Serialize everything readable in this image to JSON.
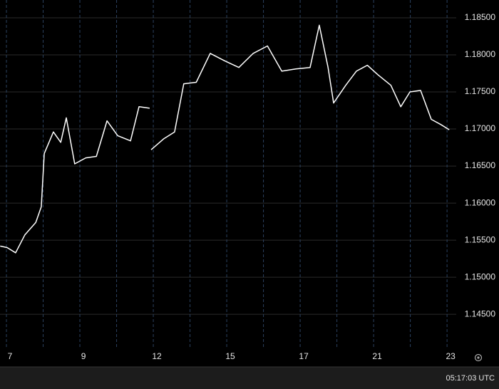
{
  "chart_data": {
    "type": "line",
    "color": "#ffffff",
    "x": [
      -0.17,
      0.02,
      0.25,
      0.5,
      0.8,
      0.95,
      1.03,
      1.28,
      1.48,
      1.63,
      1.86,
      2.16,
      2.45,
      2.74,
      3.03,
      3.38,
      3.61,
      3.9,
      3.92,
      3.94,
      4.29,
      4.58,
      4.83,
      5.17,
      5.55,
      5.94,
      6.33,
      6.72,
      7.11,
      7.5,
      7.88,
      8.27,
      8.52,
      8.76,
      8.91,
      9.24,
      9.53,
      9.83,
      10.12,
      10.47,
      10.74,
      10.99,
      11.28,
      11.57,
      11.83,
      12.06
    ],
    "series": [
      {
        "color": "#ffffff",
        "values": [
          1.1542,
          1.154,
          1.1533,
          1.1557,
          1.1574,
          1.1595,
          1.1667,
          1.1696,
          1.1682,
          1.1715,
          1.1653,
          1.1661,
          1.1663,
          1.1711,
          1.1691,
          1.1684,
          1.173,
          1.1728,
          null,
          1.1672,
          1.1687,
          1.1696,
          1.1761,
          1.1763,
          1.1802,
          1.1792,
          1.1783,
          1.1802,
          1.1812,
          1.1778,
          1.1781,
          1.1783,
          1.184,
          1.1783,
          1.1735,
          1.1759,
          1.1778,
          1.1786,
          1.1773,
          1.1759,
          1.173,
          1.175,
          1.1752,
          1.1713,
          1.1706,
          1.1699
        ]
      }
    ],
    "xlim": [
      -0.175,
      12.25
    ],
    "xticks": [
      {
        "value": 0,
        "label": "7"
      },
      {
        "value": 1,
        "label": null
      },
      {
        "value": 2,
        "label": "9"
      },
      {
        "value": 3,
        "label": null
      },
      {
        "value": 4,
        "label": "12"
      },
      {
        "value": 5,
        "label": null
      },
      {
        "value": 6,
        "label": "15"
      },
      {
        "value": 7,
        "label": null
      },
      {
        "value": 8,
        "label": "17"
      },
      {
        "value": 9,
        "label": null
      },
      {
        "value": 10,
        "label": "21"
      },
      {
        "value": 11,
        "label": null
      },
      {
        "value": 12,
        "label": "23"
      }
    ],
    "ylim": [
      1.1405,
      1.1874
    ],
    "yticks": [
      {
        "value": 1.145,
        "label": "1.14500"
      },
      {
        "value": 1.15,
        "label": "1.15000"
      },
      {
        "value": 1.155,
        "label": "1.15500"
      },
      {
        "value": 1.16,
        "label": "1.16000"
      },
      {
        "value": 1.165,
        "label": "1.16500"
      },
      {
        "value": 1.17,
        "label": "1.17000"
      },
      {
        "value": 1.175,
        "label": "1.17500"
      },
      {
        "value": 1.18,
        "label": "1.18000"
      },
      {
        "value": 1.185,
        "label": "1.18500"
      }
    ],
    "grid": true
  },
  "status_bar": {
    "time": "05:17:03 UTC"
  }
}
